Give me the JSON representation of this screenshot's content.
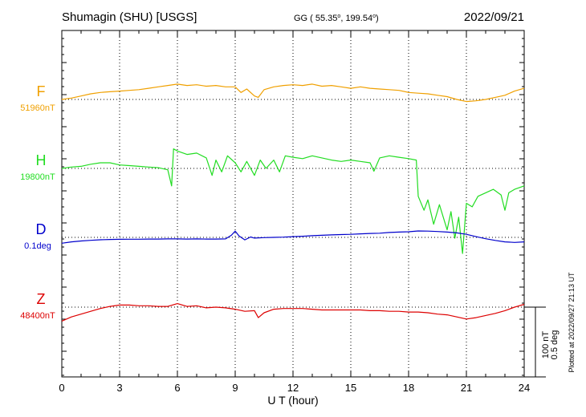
{
  "header": {
    "station": "Shumagin (SHU)  [USGS]",
    "coords_prefix": "GG ( 55.35",
    "coords_sep": ", 199.54",
    "coords_suffix": ")",
    "deg": "o",
    "date": "2022/09/21"
  },
  "footer": {
    "plotted": "Plotted at 2022/09/27 21:13 UT",
    "scale_nt": "100 nT",
    "scale_deg": "0.5 deg"
  },
  "chart_data": {
    "type": "line",
    "title": "Shumagin (SHU)  [USGS]",
    "xlabel": "U T (hour)",
    "ylabel": "",
    "xlim": [
      0,
      24
    ],
    "x_ticks": [
      0,
      3,
      6,
      9,
      12,
      15,
      18,
      21,
      24
    ],
    "x_tick_labels": [
      "0",
      "3",
      "6",
      "9",
      "12",
      "15",
      "18",
      "21",
      "24"
    ],
    "grid": true,
    "scale_bar": {
      "nT": 100,
      "deg": 0.5
    },
    "series": [
      {
        "name": "F",
        "baseline_label": "51960nT",
        "baseline": 51960,
        "unit": "nT",
        "color": "#f0a000",
        "x": [
          0,
          0.5,
          1,
          1.5,
          2,
          2.5,
          3,
          3.5,
          4,
          4.5,
          5,
          5.5,
          6,
          6.5,
          7,
          7.5,
          8,
          8.5,
          9,
          9.3,
          9.6,
          10,
          10.2,
          10.5,
          11,
          11.5,
          12,
          12.5,
          13,
          13.5,
          14,
          14.5,
          15,
          15.5,
          16,
          16.5,
          17,
          17.5,
          18,
          18.5,
          19,
          19.5,
          20,
          20.5,
          21,
          21.5,
          22,
          22.5,
          23,
          23.5,
          24
        ],
        "values": [
          51960,
          51962,
          51965,
          51968,
          51970,
          51971,
          51972,
          51973,
          51974,
          51976,
          51978,
          51980,
          51982,
          51980,
          51981,
          51979,
          51980,
          51978,
          51978,
          51970,
          51975,
          51965,
          51963,
          51974,
          51978,
          51980,
          51981,
          51980,
          51982,
          51979,
          51980,
          51978,
          51976,
          51978,
          51976,
          51975,
          51974,
          51973,
          51970,
          51969,
          51968,
          51966,
          51964,
          51960,
          51957,
          51958,
          51960,
          51963,
          51966,
          51972,
          51976
        ]
      },
      {
        "name": "H",
        "baseline_label": "19800nT",
        "baseline": 19800,
        "unit": "nT",
        "color": "#22dd22",
        "x": [
          0,
          0.5,
          1,
          1.5,
          2,
          2.5,
          3,
          3.5,
          4,
          4.5,
          5,
          5.5,
          5.7,
          5.8,
          6,
          6.5,
          7,
          7.5,
          7.8,
          8,
          8.3,
          8.6,
          9,
          9.3,
          9.6,
          10,
          10.3,
          10.6,
          11,
          11.3,
          11.6,
          12,
          12.5,
          13,
          13.5,
          14,
          14.5,
          15,
          15.5,
          16,
          16.2,
          16.5,
          17,
          17.5,
          18,
          18.4,
          18.5,
          18.8,
          19,
          19.3,
          19.6,
          20,
          20.2,
          20.4,
          20.6,
          20.8,
          21,
          21.3,
          21.6,
          22,
          22.4,
          22.8,
          23,
          23.2,
          23.5,
          24
        ],
        "values": [
          19800,
          19802,
          19803,
          19806,
          19808,
          19808,
          19805,
          19804,
          19803,
          19802,
          19801,
          19798,
          19775,
          19828,
          19825,
          19820,
          19822,
          19815,
          19790,
          19812,
          19795,
          19818,
          19808,
          19795,
          19810,
          19790,
          19812,
          19800,
          19812,
          19795,
          19818,
          19816,
          19814,
          19818,
          19815,
          19812,
          19810,
          19812,
          19810,
          19808,
          19796,
          19815,
          19818,
          19816,
          19814,
          19812,
          19760,
          19740,
          19755,
          19720,
          19748,
          19712,
          19738,
          19700,
          19730,
          19678,
          19750,
          19745,
          19760,
          19765,
          19770,
          19762,
          19740,
          19765,
          19770,
          19775
        ]
      },
      {
        "name": "D",
        "baseline_label": "0.1deg",
        "baseline": 0.1,
        "unit": "deg",
        "color": "#0000cc",
        "x": [
          0,
          0.5,
          1,
          1.5,
          2,
          2.5,
          3,
          3.5,
          4,
          4.5,
          5,
          5.5,
          6,
          6.5,
          7,
          7.5,
          8,
          8.5,
          8.8,
          9,
          9.2,
          9.5,
          9.8,
          10,
          10.5,
          11,
          11.5,
          12,
          12.5,
          13,
          13.5,
          14,
          14.5,
          15,
          15.5,
          16,
          16.5,
          17,
          17.5,
          18,
          18.5,
          19,
          19.5,
          20,
          20.5,
          21,
          21.5,
          22,
          22.5,
          23,
          23.5,
          24
        ],
        "values": [
          0.058,
          0.068,
          0.074,
          0.079,
          0.083,
          0.085,
          0.086,
          0.087,
          0.087,
          0.088,
          0.088,
          0.089,
          0.089,
          0.088,
          0.089,
          0.088,
          0.088,
          0.089,
          0.115,
          0.145,
          0.11,
          0.082,
          0.103,
          0.095,
          0.098,
          0.1,
          0.102,
          0.105,
          0.108,
          0.112,
          0.115,
          0.118,
          0.12,
          0.122,
          0.125,
          0.128,
          0.13,
          0.135,
          0.138,
          0.14,
          0.146,
          0.145,
          0.142,
          0.138,
          0.132,
          0.122,
          0.105,
          0.09,
          0.078,
          0.068,
          0.064,
          0.068
        ]
      },
      {
        "name": "Z",
        "baseline_label": "48400nT",
        "baseline": 48400,
        "unit": "nT",
        "color": "#dd0000",
        "x": [
          0,
          0.5,
          1,
          1.5,
          2,
          2.5,
          3,
          3.5,
          4,
          4.5,
          5,
          5.5,
          6,
          6.5,
          7,
          7.5,
          8,
          8.5,
          9,
          9.5,
          10,
          10.2,
          10.5,
          11,
          11.5,
          12,
          12.5,
          13,
          13.5,
          14,
          14.5,
          15,
          15.5,
          16,
          16.5,
          17,
          17.5,
          18,
          18.5,
          19,
          19.5,
          20,
          20.5,
          21,
          21.5,
          22,
          22.5,
          23,
          23.5,
          24
        ],
        "values": [
          48380,
          48386,
          48390,
          48394,
          48398,
          48401,
          48403,
          48403,
          48402,
          48402,
          48401,
          48401,
          48405,
          48401,
          48402,
          48399,
          48400,
          48399,
          48397,
          48394,
          48395,
          48385,
          48392,
          48397,
          48398,
          48398,
          48398,
          48397,
          48396,
          48396,
          48396,
          48396,
          48396,
          48395,
          48395,
          48394,
          48394,
          48393,
          48393,
          48392,
          48390,
          48389,
          48386,
          48383,
          48385,
          48388,
          48391,
          48395,
          48400,
          48404
        ]
      }
    ]
  }
}
